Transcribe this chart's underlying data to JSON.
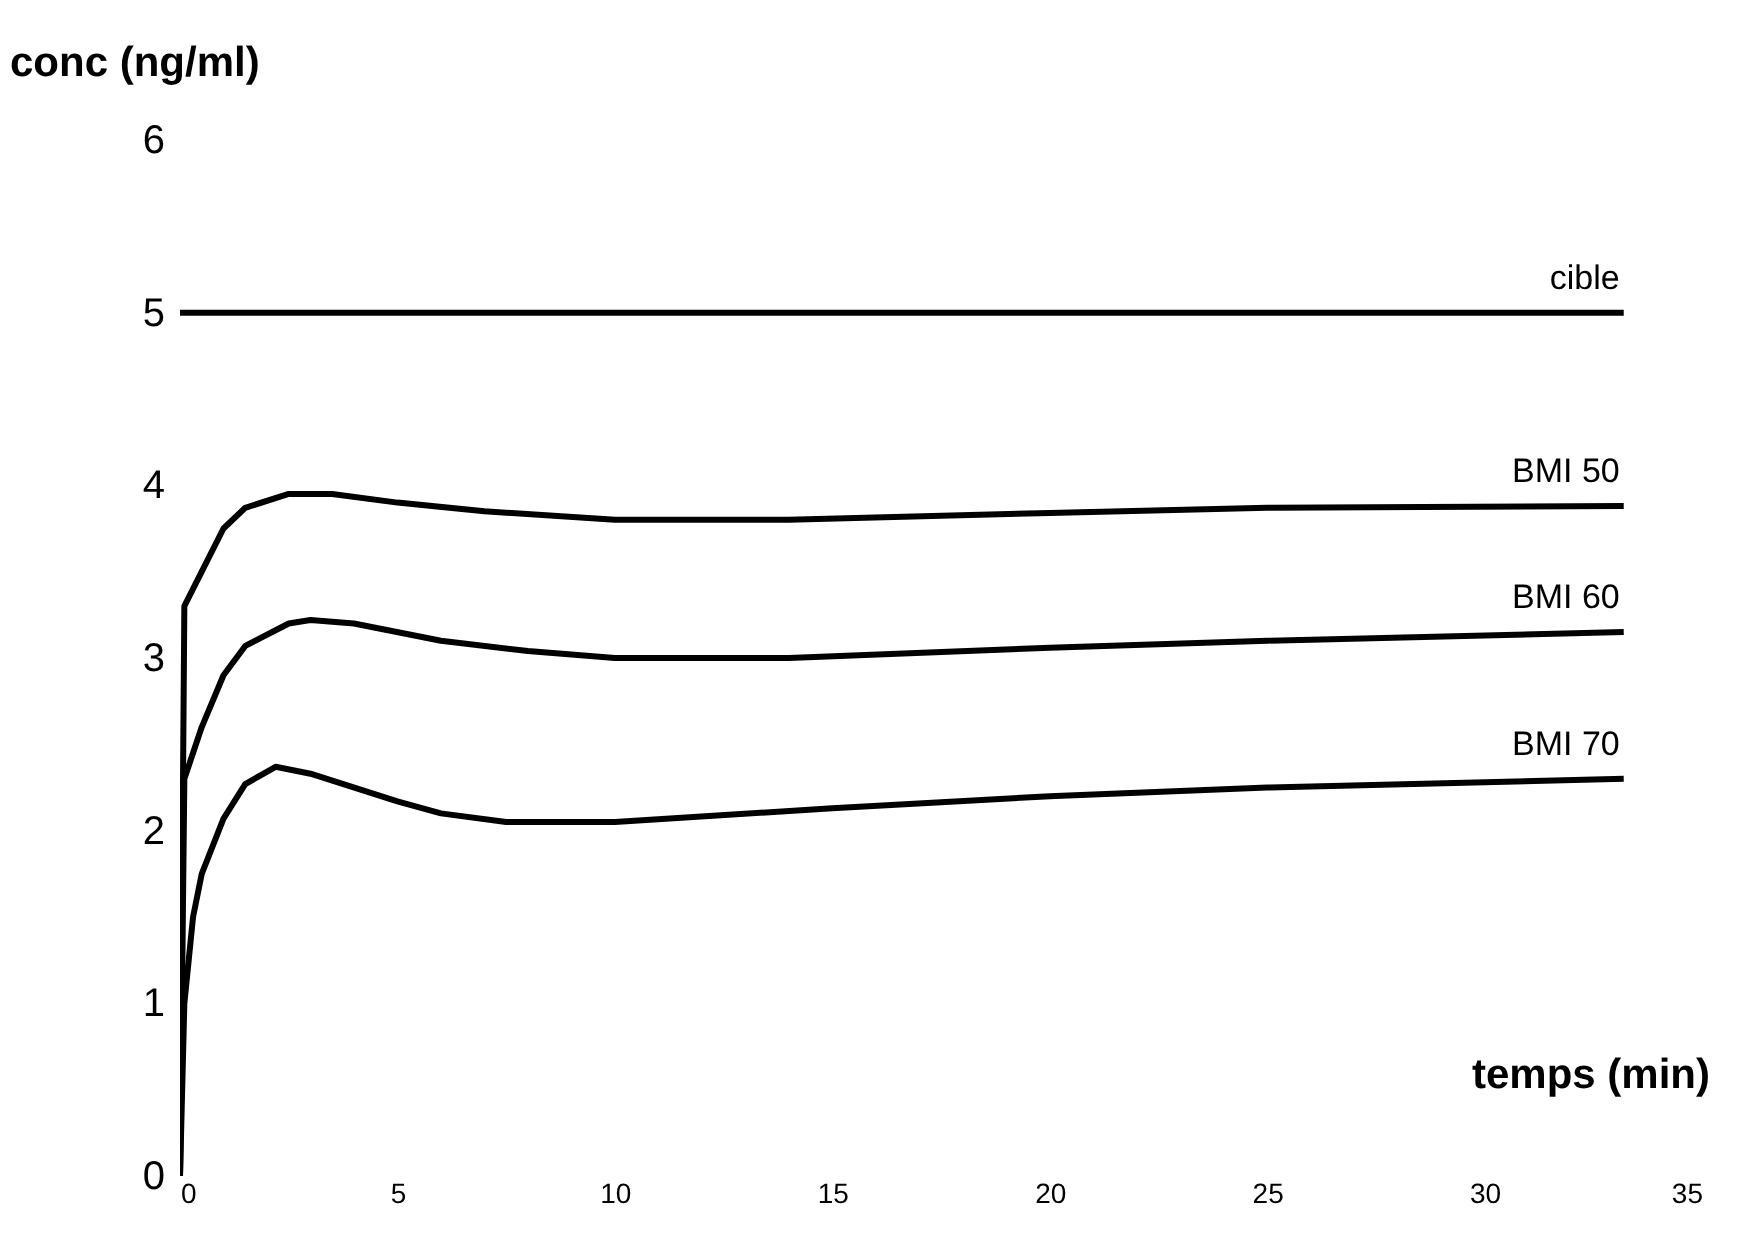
{
  "chart_data": {
    "type": "line",
    "xlabel": "temps (min)",
    "ylabel": "conc (ng/ml)",
    "xlim": [
      0,
      35
    ],
    "ylim": [
      0,
      6
    ],
    "xticks": [
      0,
      5,
      10,
      15,
      20,
      25,
      30,
      35
    ],
    "yticks": [
      0,
      1,
      2,
      3,
      4,
      5,
      6
    ],
    "grid": false,
    "marker": "none",
    "line_style": "solid",
    "series": [
      {
        "name": "cible",
        "color": "#000000",
        "x": [
          0,
          33.2
        ],
        "values": [
          5,
          5
        ]
      },
      {
        "name": "BMI 50",
        "color": "#000000",
        "x": [
          0,
          0.1,
          0.5,
          1,
          1.5,
          2.5,
          3.5,
          5,
          7,
          10,
          14,
          20,
          25,
          33.2
        ],
        "values": [
          0,
          3.3,
          3.5,
          3.75,
          3.87,
          3.95,
          3.95,
          3.9,
          3.85,
          3.8,
          3.8,
          3.84,
          3.87,
          3.88
        ]
      },
      {
        "name": "BMI 60",
        "color": "#000000",
        "x": [
          0,
          0.1,
          0.5,
          1,
          1.5,
          2.5,
          3,
          4,
          6,
          8,
          10,
          14,
          20,
          25,
          33.2
        ],
        "values": [
          0,
          2.3,
          2.6,
          2.9,
          3.07,
          3.2,
          3.22,
          3.2,
          3.1,
          3.04,
          3.0,
          3.0,
          3.06,
          3.1,
          3.15
        ]
      },
      {
        "name": "BMI 70",
        "color": "#000000",
        "x": [
          0,
          0.1,
          0.3,
          0.5,
          1,
          1.5,
          2.2,
          3,
          5,
          6,
          7.5,
          10,
          15,
          20,
          25,
          33.2
        ],
        "values": [
          0,
          1.0,
          1.5,
          1.75,
          2.07,
          2.27,
          2.37,
          2.33,
          2.17,
          2.1,
          2.05,
          2.05,
          2.13,
          2.2,
          2.25,
          2.3
        ]
      }
    ]
  }
}
